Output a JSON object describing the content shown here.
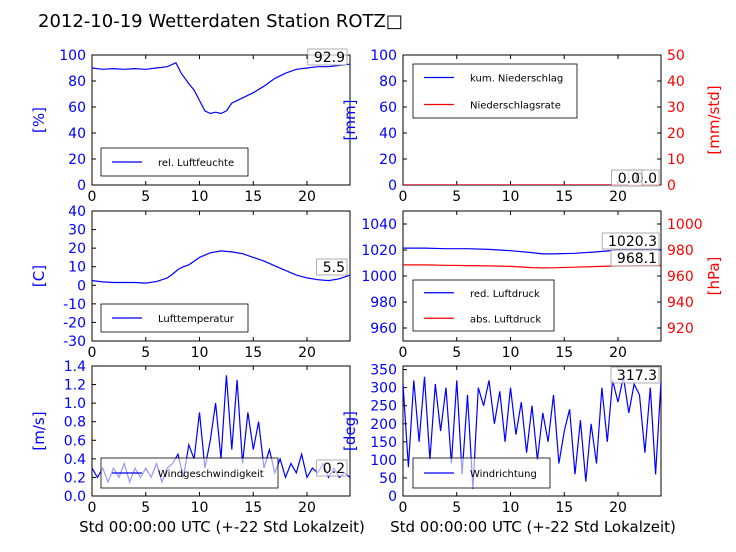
{
  "title": "2012-10-19 Wetterdaten Station ROTZ□",
  "xlabel": "Std 00:00:00 UTC (+-22 Std Lokalzeit)",
  "chart_data": [
    {
      "type": "line",
      "ylabel": "[%]",
      "ylim": [
        0,
        100
      ],
      "yticks": [
        0,
        20,
        40,
        60,
        80,
        100
      ],
      "xlim": [
        0,
        24
      ],
      "xticks": [
        0,
        5,
        10,
        15,
        20
      ],
      "legend": [
        {
          "label": "rel. Luftfeuchte",
          "color": "#0000ff"
        }
      ],
      "legend_position": "lower-left",
      "value_labels": [
        "92.9"
      ],
      "series": [
        {
          "name": "rel. Luftfeuchte",
          "color": "#0000ff",
          "x": [
            0,
            1,
            2,
            3,
            4,
            5,
            6,
            7,
            7.8,
            8.3,
            9,
            9.5,
            10,
            10.5,
            11,
            11.5,
            12,
            12.5,
            13,
            14,
            15,
            16,
            17,
            18,
            19,
            20,
            21,
            22,
            23,
            24
          ],
          "y": [
            90,
            89,
            89.5,
            89,
            89.5,
            89,
            90,
            91,
            94,
            86,
            78,
            73,
            65,
            57,
            55,
            56,
            55,
            57,
            63,
            67,
            71,
            76,
            82,
            86,
            89,
            90,
            91,
            91,
            92,
            92.9
          ]
        }
      ]
    },
    {
      "type": "line",
      "ylabel": "[mm]",
      "ylabel2": "[mm/std]",
      "ylim": [
        0,
        100
      ],
      "ylim2": [
        0,
        50
      ],
      "yticks": [
        0,
        20,
        40,
        60,
        80,
        100
      ],
      "yticks2": [
        0,
        10,
        20,
        30,
        40,
        50
      ],
      "xlim": [
        0,
        24
      ],
      "xticks": [
        0,
        5,
        10,
        15,
        20
      ],
      "legend": [
        {
          "label": "kum. Niederschlag",
          "color": "#0000ff"
        },
        {
          "label": "Niederschlagsrate",
          "color": "#ff0000"
        }
      ],
      "legend_position": "upper-left",
      "value_labels": [
        "0.0",
        "0.0"
      ],
      "series": [
        {
          "name": "kum. Niederschlag",
          "color": "#0000ff",
          "x": [
            0,
            24
          ],
          "y": [
            0,
            0
          ]
        },
        {
          "name": "Niederschlagsrate",
          "color": "#ff0000",
          "x": [
            0,
            24
          ],
          "y": [
            0,
            0
          ]
        }
      ]
    },
    {
      "type": "line",
      "ylabel": "[C]",
      "ylim": [
        -30,
        40
      ],
      "yticks": [
        -30,
        -20,
        -10,
        0,
        10,
        20,
        30,
        40
      ],
      "xlim": [
        0,
        24
      ],
      "xticks": [
        0,
        5,
        10,
        15,
        20
      ],
      "legend": [
        {
          "label": "Lufttemperatur",
          "color": "#0000ff"
        }
      ],
      "legend_position": "lower-left",
      "value_labels": [
        "5.5"
      ],
      "series": [
        {
          "name": "Lufttemperatur",
          "color": "#0000ff",
          "x": [
            0,
            1,
            2,
            3,
            4,
            5,
            6,
            7,
            7.5,
            8,
            8.5,
            9,
            10,
            11,
            12,
            13,
            14,
            15,
            16,
            17,
            18,
            19,
            20,
            21,
            22,
            23,
            24
          ],
          "y": [
            2.5,
            1.8,
            1.5,
            1.5,
            1.5,
            1.2,
            2,
            4,
            6,
            8.5,
            10,
            11,
            15,
            17.5,
            18.5,
            18,
            17,
            15,
            13,
            10.5,
            8,
            5.5,
            4,
            3,
            2.5,
            3.5,
            5.5
          ]
        }
      ]
    },
    {
      "type": "line",
      "ylabel2": "[hPa]",
      "ylim": [
        950,
        1050
      ],
      "ylim2": [
        910,
        1010
      ],
      "yticks": [
        960,
        980,
        1000,
        1020,
        1040
      ],
      "yticks2": [
        920,
        940,
        960,
        980,
        1000
      ],
      "xlim": [
        0,
        24
      ],
      "xticks": [
        0,
        5,
        10,
        15,
        20
      ],
      "legend": [
        {
          "label": "red. Luftdruck",
          "color": "#0000ff"
        },
        {
          "label": "abs. Luftdruck",
          "color": "#ff0000"
        }
      ],
      "legend_position": "lower-left",
      "value_labels": [
        "1020.3",
        "968.1"
      ],
      "series": [
        {
          "name": "red. Luftdruck",
          "color": "#0000ff",
          "x": [
            0,
            2,
            4,
            6,
            8,
            10,
            12,
            13,
            14,
            16,
            18,
            20,
            22,
            24
          ],
          "y": [
            1021.5,
            1021.5,
            1021,
            1021,
            1020.5,
            1019.5,
            1018,
            1017,
            1017,
            1017.5,
            1018.5,
            1020,
            1020.3,
            1020.3
          ]
        },
        {
          "name": "abs. Luftdruck",
          "color": "#ff0000",
          "x": [
            0,
            2,
            4,
            6,
            8,
            10,
            12,
            13,
            14,
            16,
            18,
            20,
            22,
            24
          ],
          "y": [
            968.5,
            968.5,
            968.2,
            968,
            967.8,
            967.4,
            966.5,
            966.2,
            966.3,
            966.8,
            967.3,
            967.8,
            968.1,
            968.1
          ]
        }
      ]
    },
    {
      "type": "line",
      "ylabel": "[m/s]",
      "ylim": [
        0,
        1.4
      ],
      "yticks": [
        0,
        0.2,
        0.4,
        0.6,
        0.8,
        1.0,
        1.2,
        1.4
      ],
      "xlim": [
        0,
        24
      ],
      "xticks": [
        0,
        5,
        10,
        15,
        20
      ],
      "legend": [
        {
          "label": "Windgeschwindigkeit",
          "color": "#0000ff"
        }
      ],
      "legend_position": "lower-center",
      "value_labels": [
        "0.2"
      ],
      "series": [
        {
          "name": "Windgeschwindigkeit",
          "color": "#0000ff",
          "x": [
            0,
            0.5,
            1,
            1.5,
            2,
            2.5,
            3,
            3.5,
            4,
            4.5,
            5,
            5.5,
            6,
            6.5,
            7,
            7.5,
            8,
            8.5,
            9,
            9.5,
            10,
            10.5,
            11,
            11.5,
            12,
            12.5,
            13,
            13.5,
            14,
            14.5,
            15,
            15.5,
            16,
            16.5,
            17,
            17.5,
            18,
            18.5,
            19,
            19.5,
            20,
            20.5,
            21,
            21.5,
            22,
            22.5,
            23,
            23.5,
            24
          ],
          "y": [
            0.3,
            0.2,
            0.3,
            0.15,
            0.3,
            0.2,
            0.35,
            0.15,
            0.3,
            0.2,
            0.3,
            0.2,
            0.35,
            0.15,
            0.3,
            0.35,
            0.45,
            0.2,
            0.55,
            0.4,
            0.9,
            0.3,
            0.6,
            1.0,
            0.4,
            1.3,
            0.5,
            1.25,
            0.35,
            0.9,
            0.5,
            0.8,
            0.3,
            0.5,
            0.25,
            0.4,
            0.2,
            0.35,
            0.25,
            0.45,
            0.2,
            0.3,
            0.25,
            0.35,
            0.2,
            0.3,
            0.2,
            0.25,
            0.2
          ]
        }
      ]
    },
    {
      "type": "line",
      "ylabel": "[deg]",
      "ylim": [
        0,
        360
      ],
      "yticks": [
        0,
        50,
        100,
        150,
        200,
        250,
        300,
        350
      ],
      "xlim": [
        0,
        24
      ],
      "xticks": [
        0,
        5,
        10,
        15,
        20
      ],
      "legend": [
        {
          "label": "Windrichtung",
          "color": "#0000ff"
        }
      ],
      "legend_position": "lower-left",
      "value_labels": [
        "317.3"
      ],
      "series": [
        {
          "name": "Windrichtung",
          "color": "#0000ff",
          "x": [
            0,
            0.5,
            1,
            1.5,
            2,
            2.5,
            3,
            3.5,
            4,
            4.5,
            5,
            5.5,
            6,
            6.5,
            7,
            7.5,
            8,
            8.5,
            9,
            9.5,
            10,
            10.5,
            11,
            11.5,
            12,
            12.5,
            13,
            13.5,
            14,
            14.5,
            15,
            15.5,
            16,
            16.5,
            17,
            17.5,
            18,
            18.5,
            19,
            19.5,
            20,
            20.5,
            21,
            21.5,
            22,
            22.5,
            23,
            23.5,
            24
          ],
          "y": [
            310,
            80,
            320,
            150,
            330,
            100,
            310,
            180,
            300,
            90,
            320,
            60,
            280,
            20,
            300,
            250,
            320,
            200,
            290,
            150,
            300,
            170,
            260,
            120,
            250,
            100,
            230,
            150,
            280,
            90,
            180,
            240,
            60,
            210,
            40,
            200,
            90,
            300,
            150,
            320,
            260,
            330,
            230,
            310,
            280,
            120,
            300,
            60,
            317.3
          ]
        }
      ]
    }
  ]
}
